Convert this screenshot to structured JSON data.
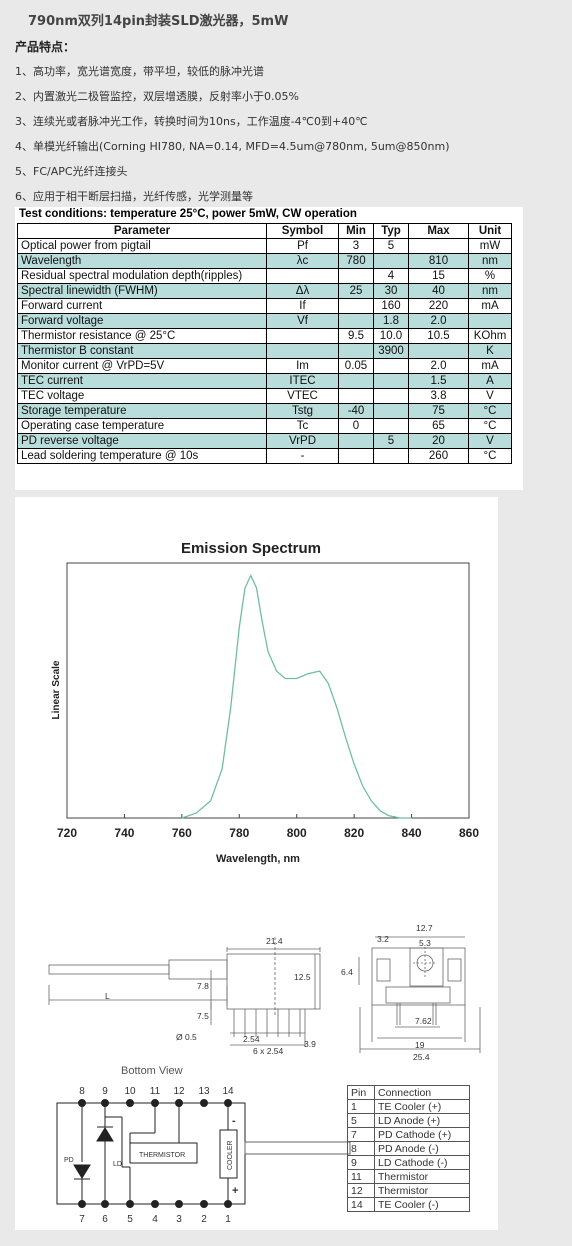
{
  "title": "790nm双列14pin封装SLD激光器，5mW",
  "features_heading": "产品特点：",
  "features": [
    "1、高功率，宽光谱宽度，带平坦，较低的脉冲光谱",
    "2、内置激光二极管监控，双层增透膜，反射率小于0.05%",
    "3、连续光或者脉冲光工作，转换时间为10ns，工作温度-4℃0到+40℃",
    "4、单模光纤输出(Corning HI780, NA=0.14, MFD=4.5um@780nm, 5um@850nm)",
    "5、FC/APC光纤连接头",
    "6、应用于相干断层扫描，光纤传感，光学测量等"
  ],
  "spec_table": {
    "title": "Test conditions: temperature 25°C, power 5mW, CW operation",
    "headers": [
      "Parameter",
      "Symbol",
      "Min",
      "Typ",
      "Max",
      "Unit"
    ],
    "rows": [
      [
        "Optical power from pigtail",
        "Pf",
        "3",
        "5",
        "",
        "mW"
      ],
      [
        "Wavelength",
        "λc",
        "780",
        "",
        "810",
        "nm"
      ],
      [
        "Residual spectral modulation depth(ripples)",
        "",
        "",
        "4",
        "15",
        "%"
      ],
      [
        "Spectral linewidth (FWHM)",
        "Δλ",
        "25",
        "30",
        "40",
        "nm"
      ],
      [
        "Forward current",
        "If",
        "",
        "160",
        "220",
        "mA"
      ],
      [
        "Forward voltage",
        "Vf",
        "",
        "1.8",
        "2.0",
        ""
      ],
      [
        "Thermistor resistance @ 25°C",
        "",
        "9.5",
        "10.0",
        "10.5",
        "KOhm"
      ],
      [
        "Thermistor B constant",
        "",
        "",
        "3900",
        "",
        "K"
      ],
      [
        "Monitor current @ VrPD=5V",
        "Im",
        "0.05",
        "",
        "2.0",
        "mA"
      ],
      [
        "TEC current",
        "ITEC",
        "",
        "",
        "1.5",
        "A"
      ],
      [
        "TEC voltage",
        "VTEC",
        "",
        "",
        "3.8",
        "V"
      ],
      [
        "Storage temperature",
        "Tstg",
        "-40",
        "",
        "75",
        "°C"
      ],
      [
        "Operating case temperature",
        "Tc",
        "0",
        "",
        "65",
        "°C"
      ],
      [
        "PD reverse voltage",
        "VrPD",
        "",
        "5",
        "20",
        "V"
      ],
      [
        "Lead soldering temperature @ 10s",
        "-",
        "",
        "",
        "260",
        "°C"
      ]
    ]
  },
  "chart_data": {
    "type": "line",
    "title": "Emission Spectrum",
    "xlabel": "Wavelength, nm",
    "ylabel": "Linear Scale",
    "xlim": [
      720,
      860
    ],
    "ylim": [
      0,
      1.0
    ],
    "xticks": [
      "720",
      "740",
      "760",
      "780",
      "800",
      "820",
      "840",
      "860"
    ],
    "grid": false,
    "line_color": "#6fbf9f",
    "x": [
      760,
      765,
      770,
      774,
      777,
      780,
      782,
      784,
      786,
      788,
      790,
      793,
      796,
      800,
      804,
      808,
      811,
      814,
      817,
      820,
      823,
      826,
      829,
      832,
      836,
      840
    ],
    "y": [
      0.0,
      0.02,
      0.07,
      0.2,
      0.45,
      0.78,
      0.94,
      0.99,
      0.94,
      0.8,
      0.68,
      0.6,
      0.57,
      0.57,
      0.59,
      0.6,
      0.55,
      0.45,
      0.33,
      0.22,
      0.13,
      0.07,
      0.03,
      0.01,
      0.0,
      0.0
    ]
  },
  "mechanical": {
    "dims": {
      "d21_4": "21.4",
      "d12_5": "12.5",
      "d7_8": "7.8",
      "d7_5": "7.5",
      "d0_5": "Ø 0.5",
      "d2_54": "2.54",
      "d6x2_54": "6 x 2.54",
      "d3_9": "3.9",
      "dL": "L",
      "d3_2": "3.2",
      "d12_7": "12.7",
      "d5_3": "5.3",
      "d6_4": "6.4",
      "d7_62": "7.62",
      "d19": "19",
      "d25_4": "25.4"
    },
    "bottom_view": "Bottom View",
    "top_pins": [
      "8",
      "9",
      "10",
      "11",
      "12",
      "13",
      "14"
    ],
    "bottom_pins": [
      "7",
      "6",
      "5",
      "4",
      "3",
      "2",
      "1"
    ],
    "labels": {
      "pd": "PD",
      "ld": "LD",
      "thermistor": "THERMISTOR",
      "cooler": "COOLER",
      "minus": "-",
      "plus": "+"
    }
  },
  "pin_table": {
    "headers": [
      "Pin",
      "Connection"
    ],
    "rows": [
      [
        "1",
        "TE Cooler (+)"
      ],
      [
        "5",
        "LD Anode (+)"
      ],
      [
        "7",
        "PD Cathode (+)"
      ],
      [
        "8",
        "PD Anode (-)"
      ],
      [
        "9",
        "LD Cathode (-)"
      ],
      [
        "11",
        "Thermistor"
      ],
      [
        "12",
        "Thermistor"
      ],
      [
        "14",
        "TE Cooler (-)"
      ]
    ]
  }
}
